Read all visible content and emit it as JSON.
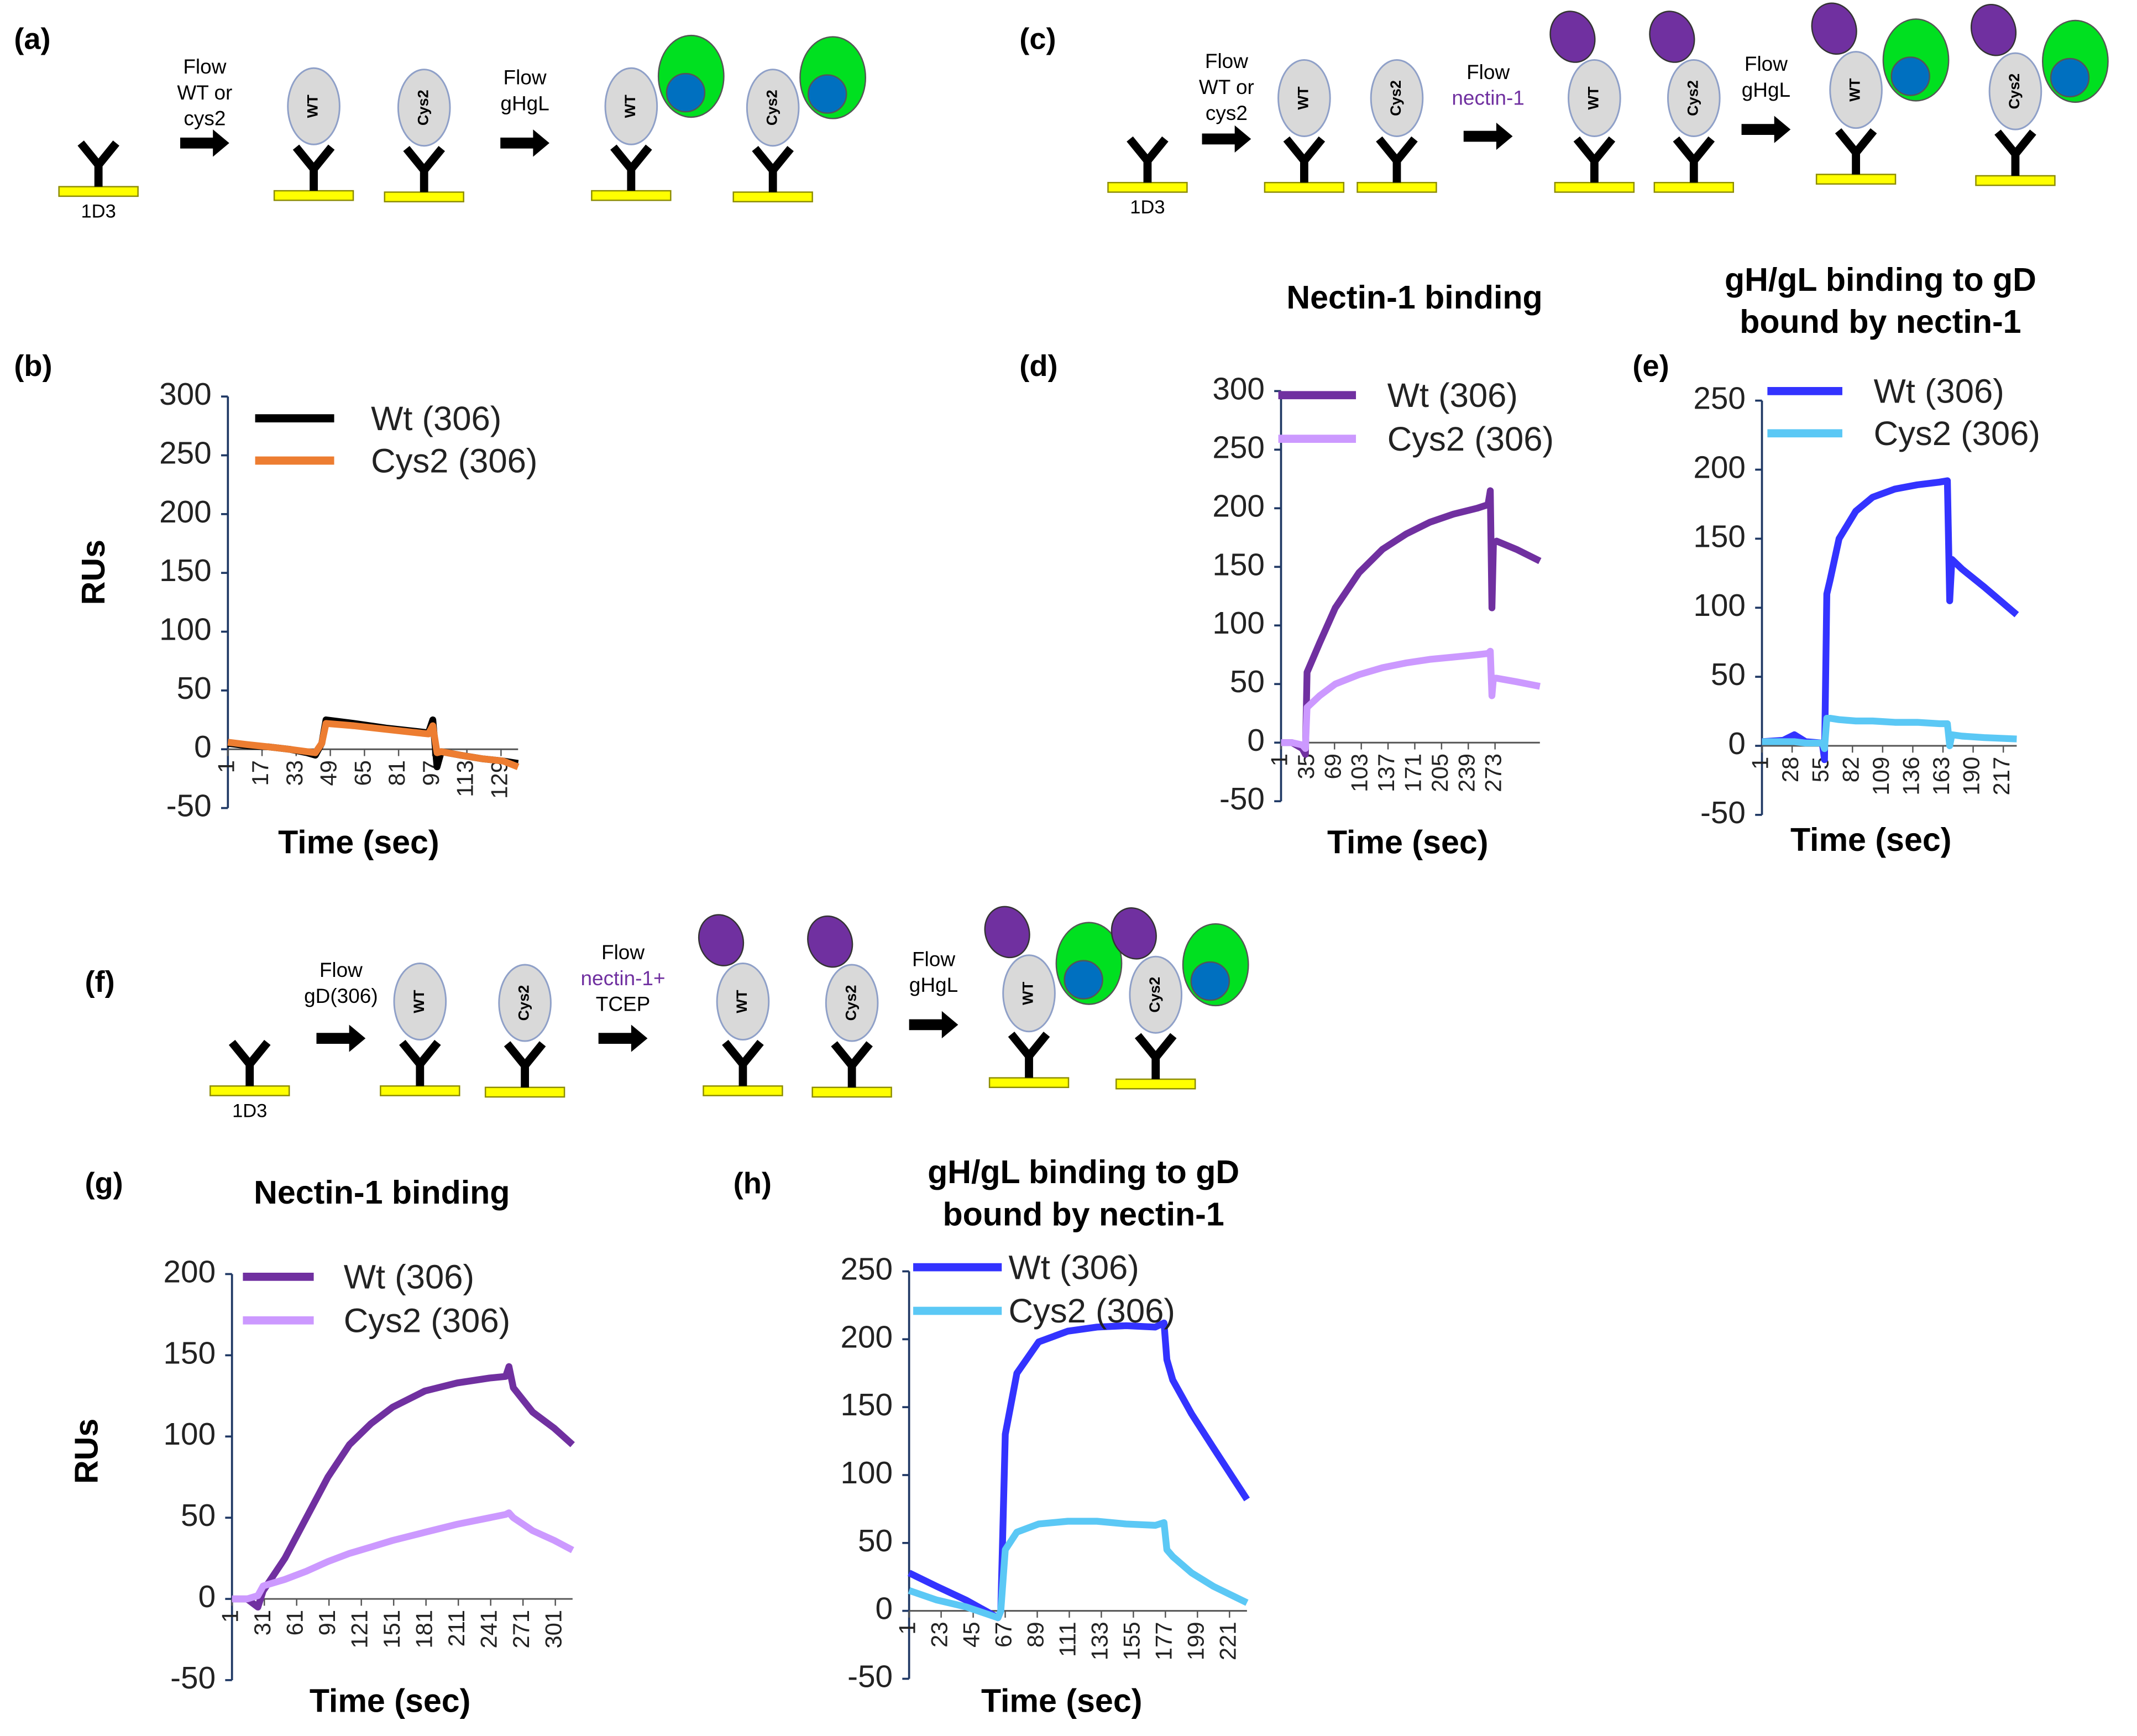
{
  "diagrams": [
    {
      "panel": "(a)",
      "antibody": "1D3",
      "units": [
        "WT",
        "Cys2"
      ],
      "steps": [
        {
          "lines": [
            "Flow",
            "WT or",
            "cys2"
          ],
          "colors": [
            "#000000",
            "#000000",
            "#000000"
          ]
        },
        {
          "lines": [
            "Flow",
            "gHgL"
          ],
          "colors": [
            "#000000",
            "#000000"
          ]
        }
      ]
    },
    {
      "panel": "(c)",
      "antibody": "1D3",
      "units": [
        "WT",
        "Cys2"
      ],
      "steps": [
        {
          "lines": [
            "Flow",
            "WT or",
            "cys2"
          ],
          "colors": [
            "#000000",
            "#000000",
            "#000000"
          ]
        },
        {
          "lines": [
            "Flow",
            "nectin-1"
          ],
          "colors": [
            "#000000",
            "#7030a0"
          ]
        },
        {
          "lines": [
            "Flow",
            "gHgL"
          ],
          "colors": [
            "#000000",
            "#000000"
          ]
        }
      ]
    },
    {
      "panel": "(f)",
      "antibody": "1D3",
      "units": [
        "WT",
        "Cys2"
      ],
      "steps": [
        {
          "lines": [
            "Flow",
            "gD(306)"
          ],
          "colors": [
            "#000000",
            "#000000"
          ]
        },
        {
          "lines": [
            "Flow",
            "nectin-1+",
            "TCEP"
          ],
          "colors": [
            "#000000",
            "#7030a0",
            "#000000"
          ]
        },
        {
          "lines": [
            "Flow",
            "gHgL"
          ],
          "colors": [
            "#000000",
            "#000000"
          ]
        }
      ]
    }
  ],
  "chart_data": [
    {
      "type": "line",
      "panel": "(b)",
      "ylabel": "RUs",
      "xlabel": "Time (sec)",
      "x": [
        1,
        10,
        20,
        30,
        38,
        42,
        45,
        47,
        60,
        75,
        90,
        95,
        97,
        99,
        101,
        110,
        120,
        130,
        137
      ],
      "series": [
        {
          "name": "Wt (306)",
          "color": "#000000",
          "values": [
            5,
            3,
            2,
            0,
            -3,
            -5,
            5,
            25,
            22,
            18,
            15,
            14,
            25,
            -15,
            -2,
            -5,
            -8,
            -10,
            -12
          ]
        },
        {
          "name": "Cys2 (306)",
          "color": "#ed7d31",
          "values": [
            6,
            4,
            2,
            0,
            -2,
            -3,
            5,
            22,
            20,
            17,
            14,
            13,
            20,
            -3,
            -2,
            -5,
            -8,
            -10,
            -15
          ]
        }
      ],
      "xlim": [
        1,
        137
      ],
      "xticks": [
        1,
        17,
        33,
        49,
        65,
        81,
        97,
        113,
        129
      ],
      "ylim": [
        -50,
        300
      ],
      "yticks": [
        -50,
        0,
        50,
        100,
        150,
        200,
        250,
        300
      ]
    },
    {
      "type": "line",
      "panel": "(d)",
      "title": [
        "Nectin-1 binding"
      ],
      "xlabel": "Time (sec)",
      "x": [
        1,
        15,
        28,
        32,
        34,
        50,
        70,
        100,
        130,
        160,
        190,
        220,
        250,
        264,
        267,
        269,
        271,
        275,
        300,
        330
      ],
      "series": [
        {
          "name": "Wt (306)",
          "color": "#7030a0",
          "values": [
            0,
            0,
            -5,
            -10,
            60,
            85,
            115,
            145,
            165,
            178,
            188,
            195,
            200,
            203,
            215,
            115,
            170,
            172,
            165,
            155
          ]
        },
        {
          "name": "Cys2 (306)",
          "color": "#cc99ff",
          "values": [
            0,
            0,
            -2,
            -5,
            30,
            40,
            50,
            58,
            64,
            68,
            71,
            73,
            75,
            76,
            78,
            40,
            55,
            55,
            52,
            48
          ]
        }
      ],
      "xlim": [
        1,
        330
      ],
      "xticks": [
        1,
        35,
        69,
        103,
        137,
        171,
        205,
        239,
        273
      ],
      "ylim": [
        -50,
        300
      ],
      "yticks": [
        -50,
        0,
        50,
        100,
        150,
        200,
        250,
        300
      ]
    },
    {
      "type": "line",
      "panel": "(e)",
      "title": [
        "gH/gL binding to gD",
        "bound by nectin-1"
      ],
      "xlabel": "Time (sec)",
      "x": [
        1,
        20,
        30,
        40,
        55,
        57,
        59,
        62,
        70,
        85,
        100,
        120,
        140,
        160,
        167,
        169,
        171,
        180,
        200,
        229
      ],
      "series": [
        {
          "name": "Wt (306)",
          "color": "#3333ff",
          "values": [
            3,
            4,
            8,
            3,
            2,
            -10,
            110,
            120,
            150,
            170,
            180,
            186,
            189,
            191,
            192,
            105,
            135,
            128,
            115,
            95
          ]
        },
        {
          "name": "Cys2 (306)",
          "color": "#5bc8f5",
          "values": [
            3,
            3,
            3,
            2,
            2,
            -2,
            20,
            20,
            19,
            18,
            18,
            17,
            17,
            16,
            16,
            0,
            8,
            7,
            6,
            5
          ]
        }
      ],
      "xlim": [
        1,
        229
      ],
      "xticks": [
        1,
        28,
        55,
        82,
        109,
        136,
        163,
        190,
        217
      ],
      "ylim": [
        -50,
        250
      ],
      "yticks": [
        -50,
        0,
        50,
        100,
        150,
        200,
        250
      ]
    },
    {
      "type": "line",
      "panel": "(g)",
      "title": [
        "Nectin-1 binding"
      ],
      "ylabel": "RUs",
      "xlabel": "Time (sec)",
      "x": [
        1,
        15,
        25,
        30,
        50,
        70,
        90,
        110,
        130,
        150,
        180,
        210,
        240,
        255,
        258,
        262,
        280,
        300,
        317
      ],
      "series": [
        {
          "name": "Wt (306)",
          "color": "#7030a0",
          "values": [
            0,
            0,
            -5,
            5,
            25,
            50,
            75,
            95,
            108,
            118,
            128,
            133,
            136,
            137,
            143,
            130,
            115,
            105,
            95
          ]
        },
        {
          "name": "Cys2 (306)",
          "color": "#cc99ff",
          "values": [
            0,
            0,
            2,
            8,
            12,
            17,
            23,
            28,
            32,
            36,
            41,
            46,
            50,
            52,
            53,
            50,
            42,
            36,
            30
          ]
        }
      ],
      "xlim": [
        1,
        317
      ],
      "xticks": [
        1,
        31,
        61,
        91,
        121,
        151,
        181,
        211,
        241,
        271,
        301
      ],
      "ylim": [
        -50,
        200
      ],
      "yticks": [
        -50,
        0,
        50,
        100,
        150,
        200
      ]
    },
    {
      "type": "line",
      "panel": "(h)",
      "title": [
        "gH/gL binding to gD",
        "bound by nectin-1"
      ],
      "xlabel": "Time (sec)",
      "x": [
        1,
        20,
        40,
        62,
        64,
        67,
        75,
        90,
        110,
        130,
        150,
        170,
        176,
        178,
        182,
        195,
        210,
        233
      ],
      "series": [
        {
          "name": "Wt (306)",
          "color": "#3333ff",
          "values": [
            28,
            18,
            8,
            -5,
            0,
            130,
            175,
            198,
            206,
            209,
            210,
            209,
            212,
            185,
            170,
            145,
            120,
            82
          ]
        },
        {
          "name": "Cys2 (306)",
          "color": "#5bc8f5",
          "values": [
            15,
            8,
            3,
            -5,
            0,
            45,
            58,
            64,
            66,
            66,
            64,
            63,
            65,
            45,
            40,
            28,
            18,
            6
          ]
        }
      ],
      "xlim": [
        1,
        233
      ],
      "xticks": [
        1,
        23,
        45,
        67,
        89,
        111,
        133,
        155,
        177,
        199,
        221
      ],
      "ylim": [
        -50,
        250
      ],
      "yticks": [
        -50,
        0,
        50,
        100,
        150,
        200,
        250
      ]
    }
  ]
}
